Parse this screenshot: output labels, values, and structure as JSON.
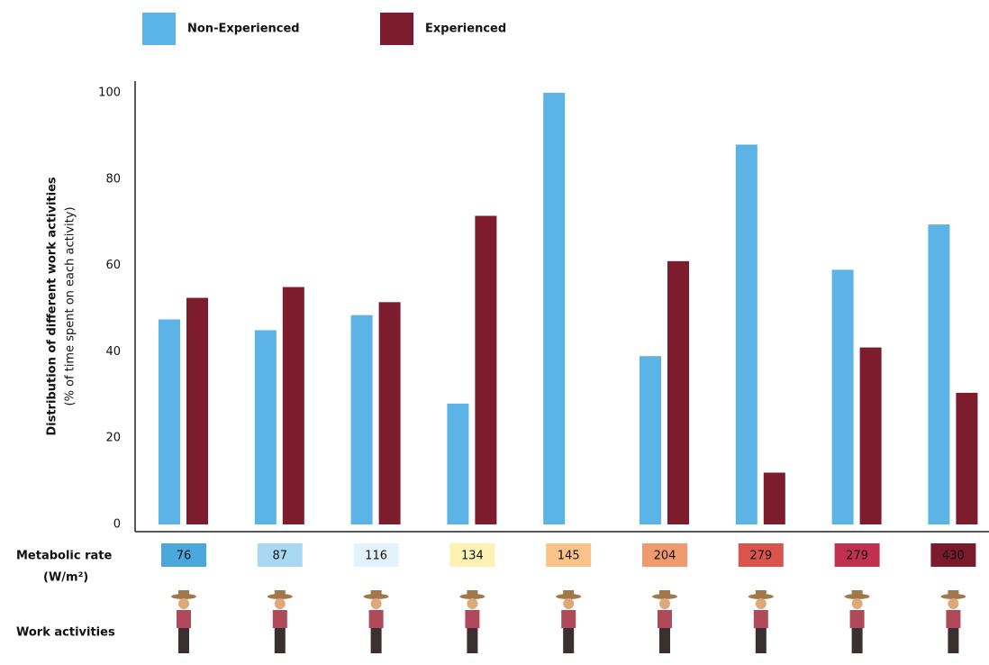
{
  "chart_data": {
    "type": "bar",
    "y_label": "Distribution of different work activities",
    "y_sublabel": "(% of time spent on each activity)",
    "categories": [
      null,
      null,
      null,
      null,
      null,
      null,
      null,
      null,
      null
    ],
    "series": [
      {
        "name": "Non-Experienced",
        "color": "#5bb4e5",
        "values": [
          47.5,
          45,
          48.5,
          28,
          100,
          39,
          88,
          59,
          69.5
        ]
      },
      {
        "name": "Experienced",
        "color": "#7d1c2c",
        "values": [
          52.5,
          55,
          51.5,
          71.5,
          0,
          61,
          12,
          41,
          30.5
        ]
      }
    ],
    "ylim": [
      0,
      100
    ],
    "yticks": [
      0,
      20,
      40,
      60,
      80,
      100
    ],
    "grid": false,
    "metabolic_label": "Metabolic rate",
    "metabolic_unit": "(W/m²)",
    "metabolic_rates": [
      76,
      87,
      116,
      134,
      145,
      204,
      279,
      279,
      430
    ],
    "metabolic_colors": [
      "#4aa8dc",
      "#a9d8f2",
      "#e3f3fb",
      "#fdf2b3",
      "#f9c38a",
      "#f09a6e",
      "#d9544d",
      "#c0304f",
      "#7b1a2a"
    ],
    "activities_label": "Work activities"
  }
}
